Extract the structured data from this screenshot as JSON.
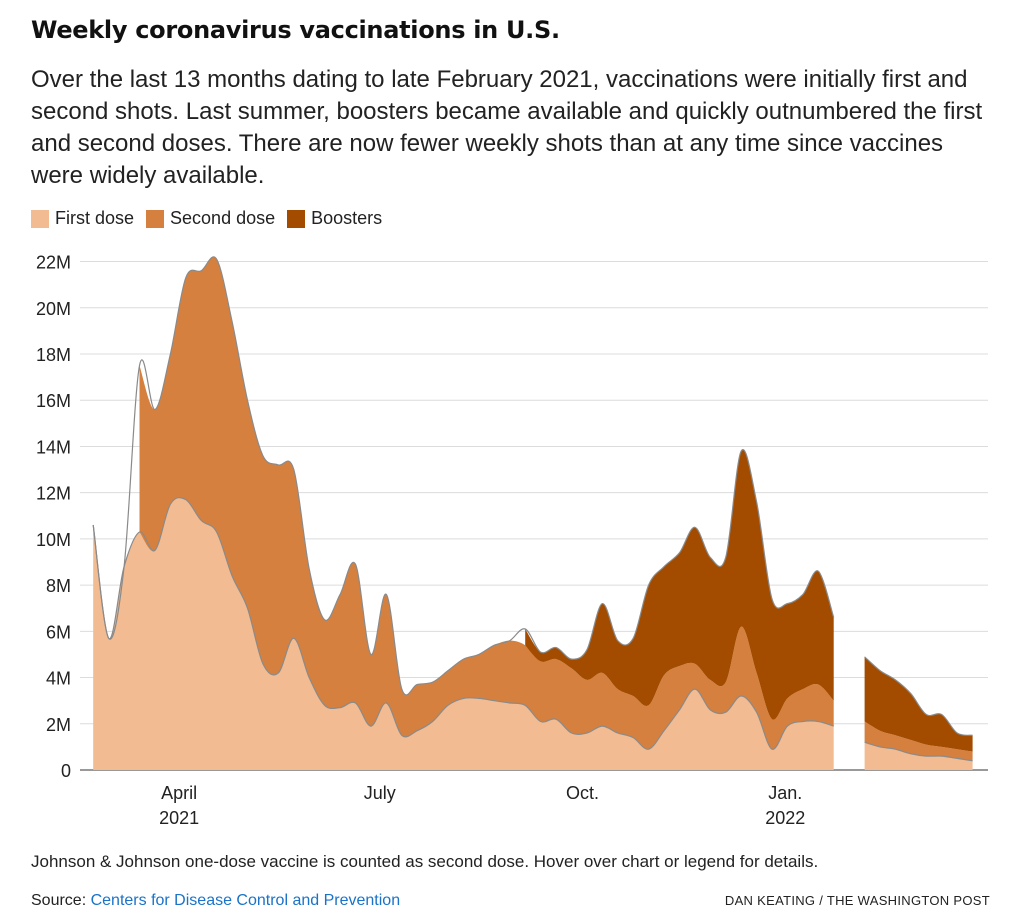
{
  "header": {
    "title": "Weekly coronavirus vaccinations in U.S.",
    "subtitle": "Over the last 13 months dating to late February 2021, vaccinations were initially first and second shots. Last summer, boosters became available and quickly outnumbered the first and second doses. There are now fewer weekly shots than at any time since vaccines were widely available."
  },
  "footer": {
    "note": "Johnson & Johnson one-dose vaccine is counted as second dose. Hover over chart or legend for details.",
    "source_prefix": "Source: ",
    "source_link": "Centers for Disease Control and Prevention",
    "credit": "DAN KEATING / THE WASHINGTON POST"
  },
  "chart_data": {
    "type": "area",
    "stacked": true,
    "x_type": "time",
    "x_range": [
      "2021-02-15",
      "2022-04-03"
    ],
    "ylim": [
      0,
      22500000
    ],
    "y_ticks": [
      {
        "value": 0,
        "label": "0"
      },
      {
        "value": 2000000,
        "label": "2M"
      },
      {
        "value": 4000000,
        "label": "4M"
      },
      {
        "value": 6000000,
        "label": "6M"
      },
      {
        "value": 8000000,
        "label": "8M"
      },
      {
        "value": 10000000,
        "label": "10M"
      },
      {
        "value": 12000000,
        "label": "12M"
      },
      {
        "value": 14000000,
        "label": "14M"
      },
      {
        "value": 16000000,
        "label": "16M"
      },
      {
        "value": 18000000,
        "label": "18M"
      },
      {
        "value": 20000000,
        "label": "20M"
      },
      {
        "value": 22000000,
        "label": "22M"
      }
    ],
    "x_ticks": [
      {
        "date": "2021-04-01",
        "label": "April",
        "sublabel": "2021"
      },
      {
        "date": "2021-07-01",
        "label": "July",
        "sublabel": ""
      },
      {
        "date": "2021-10-01",
        "label": "Oct.",
        "sublabel": ""
      },
      {
        "date": "2022-01-01",
        "label": "Jan.",
        "sublabel": "2022"
      }
    ],
    "grid": "horizontal",
    "legend_position": "top-left",
    "dates": [
      "2021-02-21",
      "2021-02-28",
      "2021-03-07",
      "2021-03-14",
      "2021-03-21",
      "2021-03-28",
      "2021-04-04",
      "2021-04-11",
      "2021-04-18",
      "2021-04-25",
      "2021-05-02",
      "2021-05-09",
      "2021-05-16",
      "2021-05-23",
      "2021-05-30",
      "2021-06-06",
      "2021-06-13",
      "2021-06-20",
      "2021-06-27",
      "2021-07-04",
      "2021-07-11",
      "2021-07-18",
      "2021-07-25",
      "2021-08-01",
      "2021-08-08",
      "2021-08-15",
      "2021-08-22",
      "2021-08-29",
      "2021-09-05",
      "2021-09-12",
      "2021-09-19",
      "2021-09-26",
      "2021-10-03",
      "2021-10-10",
      "2021-10-17",
      "2021-10-24",
      "2021-10-31",
      "2021-11-07",
      "2021-11-14",
      "2021-11-21",
      "2021-11-28",
      "2021-12-05",
      "2021-12-12",
      "2021-12-19",
      "2021-12-26",
      "2022-01-02",
      "2022-01-09",
      "2022-01-16",
      "2022-01-23",
      "2022-01-30",
      "2022-02-06",
      "2022-02-13",
      "2022-02-20",
      "2022-02-27",
      "2022-03-06",
      "2022-03-13",
      "2022-03-20",
      "2022-03-27"
    ],
    "series": [
      {
        "name": "First dose",
        "color": "#f2bb91",
        "values": [
          10600000,
          5700000,
          8800000,
          10300000,
          9500000,
          11500000,
          11700000,
          10800000,
          10300000,
          8400000,
          7000000,
          4600000,
          4200000,
          5700000,
          4000000,
          2800000,
          2700000,
          2900000,
          1900000,
          2900000,
          1500000,
          1700000,
          2100000,
          2800000,
          3100000,
          3100000,
          3000000,
          2900000,
          2800000,
          2100000,
          2200000,
          1600000,
          1600000,
          1900000,
          1600000,
          1400000,
          900000,
          1700000,
          2600000,
          3500000,
          2600000,
          2500000,
          3200000,
          2500000,
          900000,
          1900000,
          2100000,
          2100000,
          1900000,
          0,
          1200000,
          1000000,
          900000,
          700000,
          600000,
          600000,
          500000,
          400000
        ]
      },
      {
        "name": "Second dose",
        "color": "#d5803f",
        "values": [
          0,
          0,
          0,
          7200000,
          6100000,
          6500000,
          9600000,
          10800000,
          11800000,
          11000000,
          9000000,
          9000000,
          9000000,
          7300000,
          4700000,
          3700000,
          4900000,
          6000000,
          3100000,
          4700000,
          2000000,
          2000000,
          1700000,
          1500000,
          1700000,
          1900000,
          2400000,
          2700000,
          2600000,
          2600000,
          2600000,
          2800000,
          2300000,
          2300000,
          1900000,
          1800000,
          1900000,
          2400000,
          1900000,
          1100000,
          1300000,
          1300000,
          3000000,
          1700000,
          1300000,
          1200000,
          1400000,
          1600000,
          1100000,
          0,
          900000,
          700000,
          600000,
          600000,
          500000,
          400000,
          400000,
          400000
        ]
      },
      {
        "name": "Boosters",
        "color": "#a34c00",
        "values": [
          0,
          0,
          0,
          0,
          0,
          0,
          0,
          0,
          0,
          0,
          0,
          0,
          0,
          0,
          0,
          0,
          0,
          0,
          0,
          0,
          0,
          0,
          0,
          0,
          0,
          0,
          0,
          0,
          700000,
          400000,
          500000,
          400000,
          1300000,
          3000000,
          2100000,
          2500000,
          5200000,
          4700000,
          4900000,
          5900000,
          5300000,
          5400000,
          7600000,
          7400000,
          5200000,
          4100000,
          4100000,
          4900000,
          3600000,
          0,
          2800000,
          2600000,
          2400000,
          2000000,
          1300000,
          1400000,
          700000,
          700000
        ]
      }
    ]
  }
}
